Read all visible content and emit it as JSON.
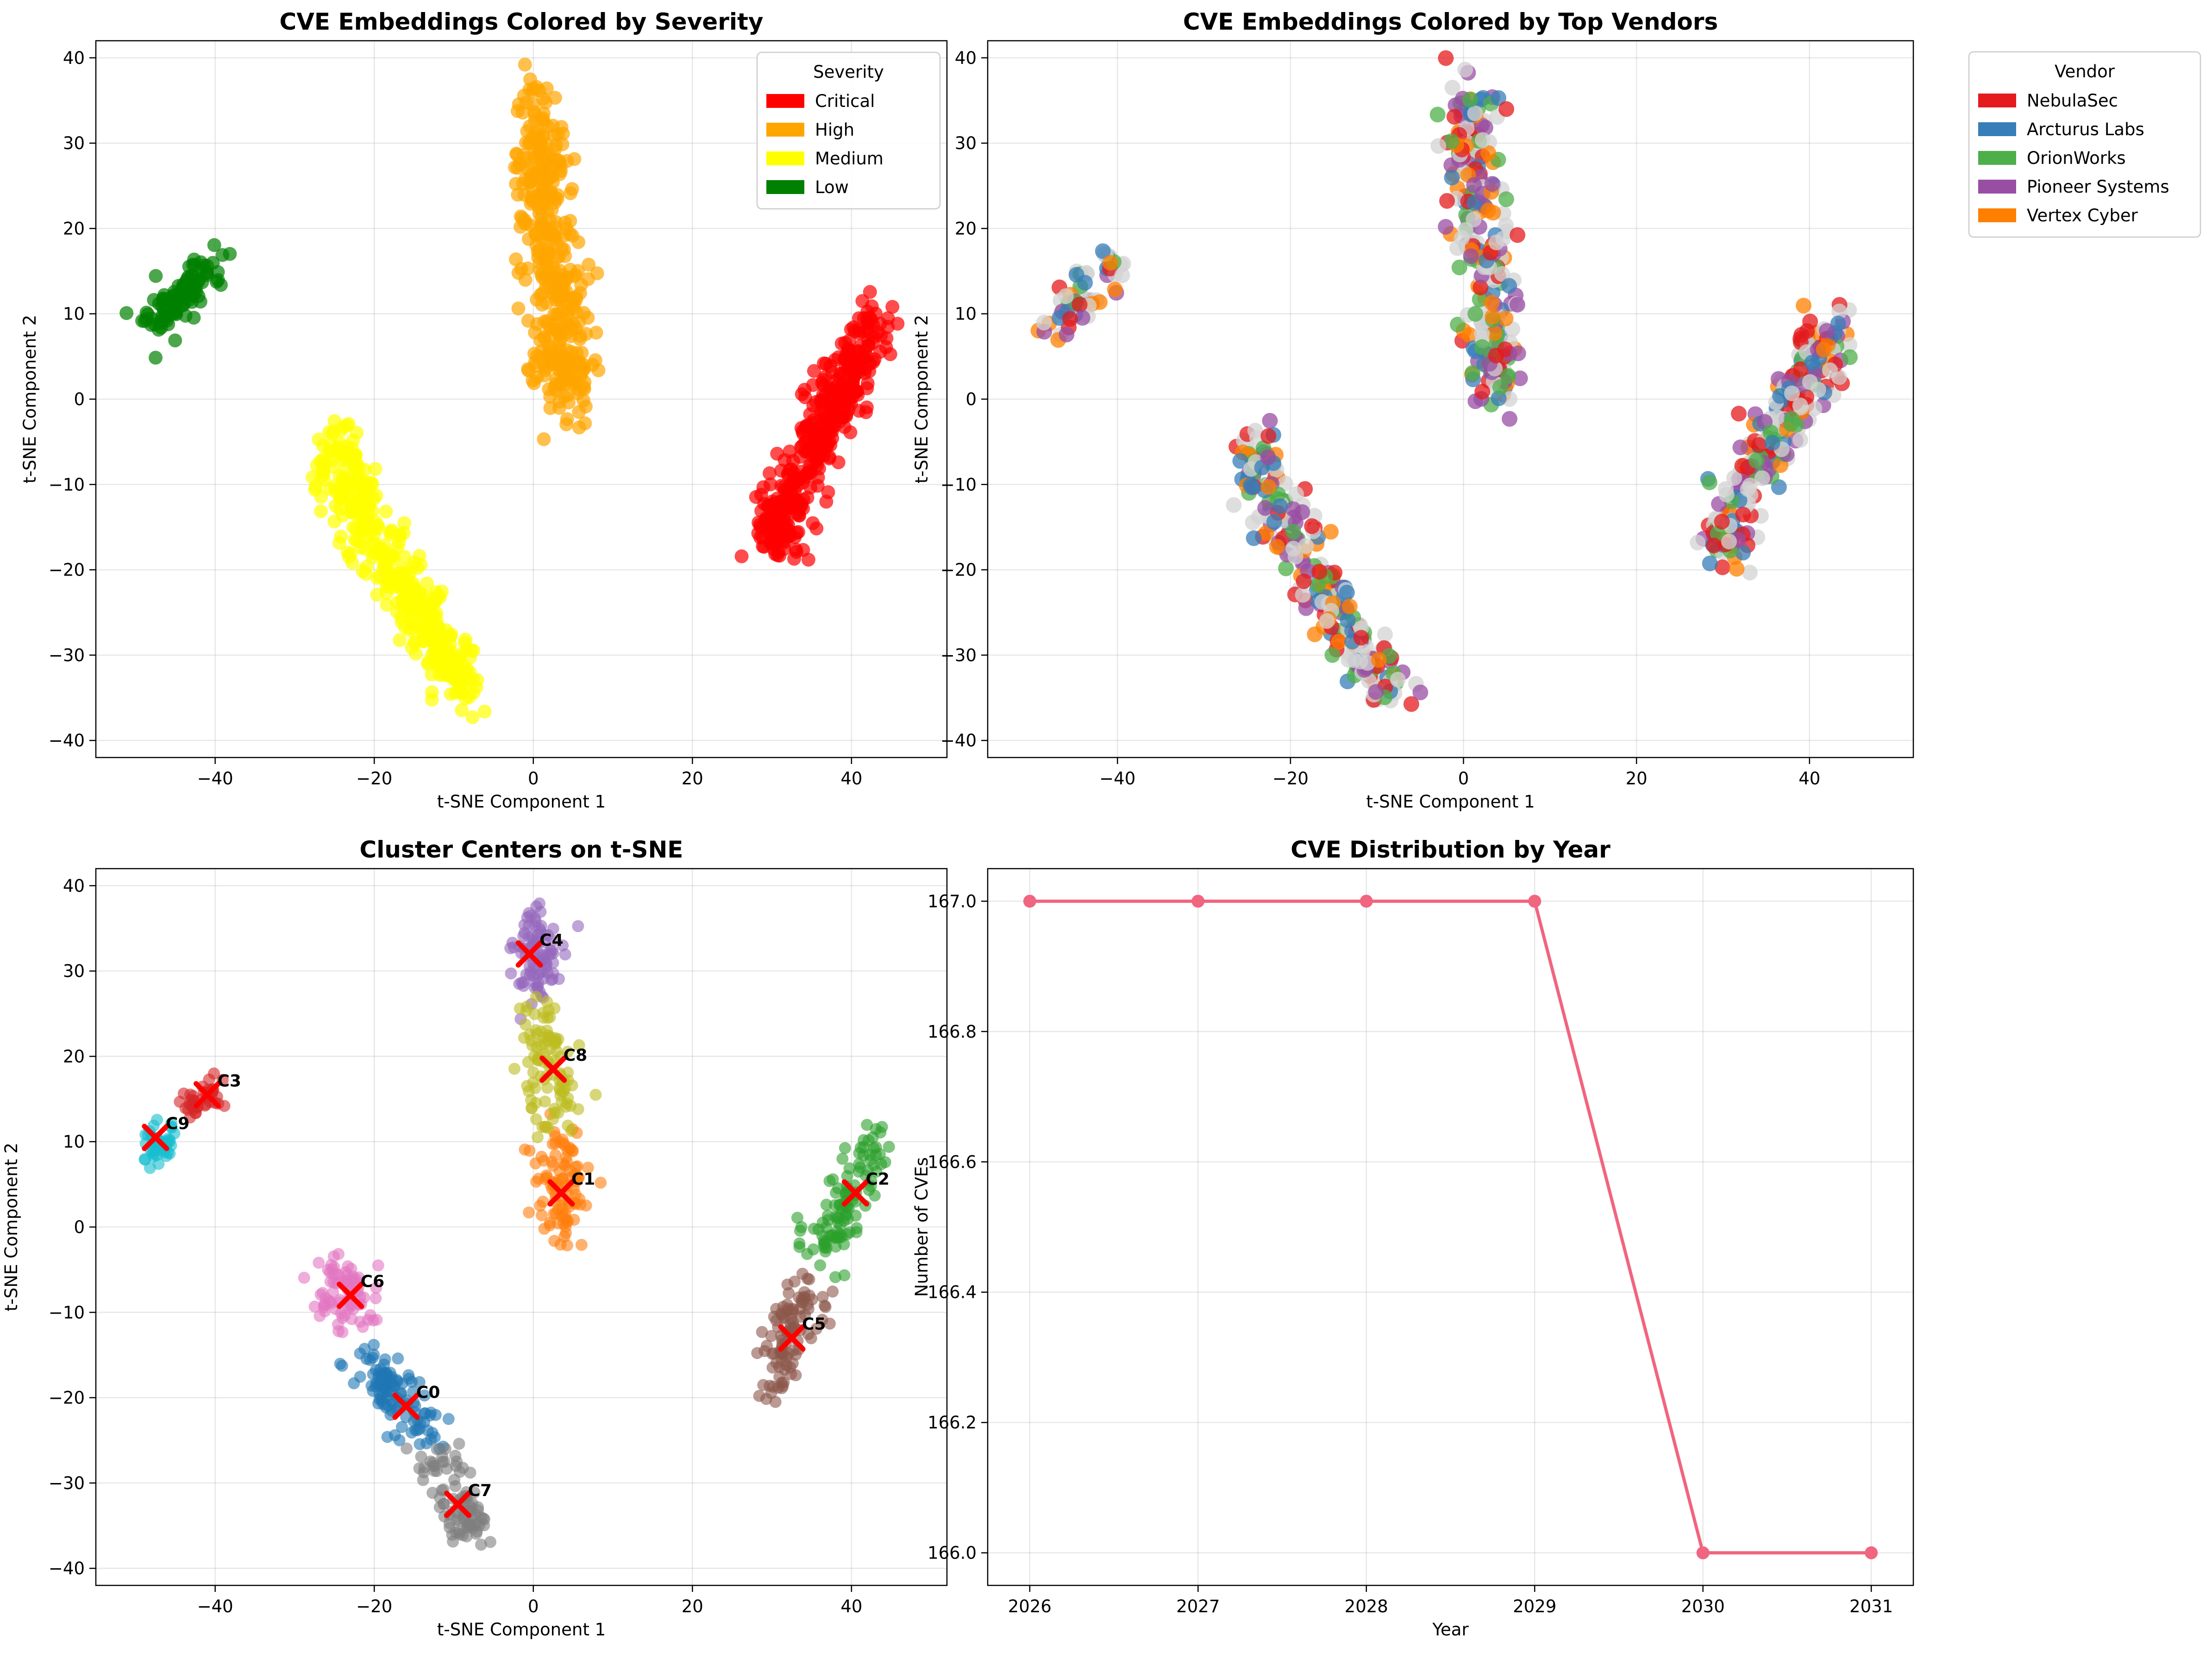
{
  "chart_data": [
    {
      "type": "scatter",
      "title": "CVE Embeddings Colored by Severity",
      "xlabel": "t-SNE Component 1",
      "ylabel": "t-SNE Component 2",
      "xlim": [
        -55,
        52
      ],
      "ylim": [
        -42,
        42
      ],
      "xticks": [
        -40,
        -20,
        0,
        20,
        40
      ],
      "yticks": [
        -40,
        -30,
        -20,
        -10,
        0,
        10,
        20,
        30,
        40
      ],
      "grid": true,
      "legend": {
        "title": "Severity",
        "placement": "upper-right",
        "entries": [
          {
            "label": "Critical",
            "color": "#ff0000"
          },
          {
            "label": "High",
            "color": "#ffa500"
          },
          {
            "label": "Medium",
            "color": "#ffff00"
          },
          {
            "label": "Low",
            "color": "#008000"
          }
        ]
      },
      "groups": [
        {
          "name": "Low",
          "color": "#008000",
          "path": [
            [
              -48,
              9
            ],
            [
              -44,
              12
            ],
            [
              -40,
              16
            ]
          ],
          "n": 100,
          "spread": 1.2
        },
        {
          "name": "High",
          "color": "#ffa500",
          "path": [
            [
              0,
              36
            ],
            [
              1,
              28
            ],
            [
              2,
              20
            ],
            [
              3,
              12
            ],
            [
              3.5,
              5
            ],
            [
              4,
              0
            ]
          ],
          "n": 400,
          "spread": 1.8
        },
        {
          "name": "Medium",
          "color": "#ffff00",
          "path": [
            [
              -25,
              -5
            ],
            [
              -22,
              -12
            ],
            [
              -18,
              -20
            ],
            [
              -13,
              -27
            ],
            [
              -8,
              -35
            ]
          ],
          "n": 400,
          "spread": 1.6
        },
        {
          "name": "Critical",
          "color": "#ff0000",
          "path": [
            [
              30,
              -18
            ],
            [
              32,
              -12
            ],
            [
              36,
              -4
            ],
            [
              39,
              2
            ],
            [
              43,
              9
            ]
          ],
          "n": 400,
          "spread": 1.6
        }
      ]
    },
    {
      "type": "scatter",
      "title": "CVE Embeddings Colored by Top Vendors",
      "xlabel": "t-SNE Component 1",
      "ylabel": "t-SNE Component 2",
      "xlim": [
        -55,
        52
      ],
      "ylim": [
        -42,
        42
      ],
      "xticks": [
        -40,
        -20,
        0,
        20,
        40
      ],
      "yticks": [
        -40,
        -30,
        -20,
        -10,
        0,
        10,
        20,
        30,
        40
      ],
      "grid": true,
      "legend": {
        "title": "Vendor",
        "placement": "outside-upper-right",
        "entries": [
          {
            "label": "NebulaSec",
            "color": "#e41a1c"
          },
          {
            "label": "Arcturus Labs",
            "color": "#377eb8"
          },
          {
            "label": "OrionWorks",
            "color": "#4daf4a"
          },
          {
            "label": "Pioneer Systems",
            "color": "#984ea3"
          },
          {
            "label": "Vertex Cyber",
            "color": "#ff7f00"
          }
        ]
      },
      "other_color": "#d3d3d3",
      "groups": [
        {
          "path": [
            [
              -48,
              9
            ],
            [
              -44,
              12
            ],
            [
              -40,
              16
            ]
          ],
          "n": 60,
          "spread": 1.2
        },
        {
          "path": [
            [
              0,
              36
            ],
            [
              1,
              28
            ],
            [
              2,
              20
            ],
            [
              3,
              12
            ],
            [
              3.5,
              5
            ],
            [
              4,
              0
            ]
          ],
          "n": 260,
          "spread": 1.8
        },
        {
          "path": [
            [
              -25,
              -5
            ],
            [
              -22,
              -12
            ],
            [
              -18,
              -20
            ],
            [
              -13,
              -27
            ],
            [
              -8,
              -35
            ]
          ],
          "n": 260,
          "spread": 1.6
        },
        {
          "path": [
            [
              30,
              -18
            ],
            [
              32,
              -12
            ],
            [
              36,
              -4
            ],
            [
              39,
              2
            ],
            [
              43,
              9
            ]
          ],
          "n": 260,
          "spread": 1.6
        }
      ]
    },
    {
      "type": "scatter",
      "title": "Cluster Centers on t-SNE",
      "xlabel": "t-SNE Component 1",
      "ylabel": "t-SNE Component 2",
      "xlim": [
        -55,
        52
      ],
      "ylim": [
        -42,
        42
      ],
      "xticks": [
        -40,
        -20,
        0,
        20,
        40
      ],
      "yticks": [
        -40,
        -30,
        -20,
        -10,
        0,
        10,
        20,
        30,
        40
      ],
      "grid": true,
      "center_marker_color": "#ff0000",
      "clusters": [
        {
          "label": "C0",
          "color": "#1f77b4",
          "center": [
            -16,
            -21
          ],
          "path": [
            [
              -21,
              -16
            ],
            [
              -17,
              -20
            ],
            [
              -13,
              -25
            ]
          ],
          "n": 110,
          "spread": 1.4
        },
        {
          "label": "C1",
          "color": "#ff7f0e",
          "center": [
            3.5,
            4
          ],
          "path": [
            [
              3,
              11
            ],
            [
              3.5,
              5
            ],
            [
              4,
              0
            ]
          ],
          "n": 100,
          "spread": 1.6
        },
        {
          "label": "C2",
          "color": "#2ca02c",
          "center": [
            40.5,
            4
          ],
          "path": [
            [
              36,
              -3
            ],
            [
              39,
              2
            ],
            [
              43,
              10
            ]
          ],
          "n": 110,
          "spread": 1.5
        },
        {
          "label": "C3",
          "color": "#d62728",
          "center": [
            -41,
            15.5
          ],
          "path": [
            [
              -43,
              14
            ],
            [
              -40,
              16
            ]
          ],
          "n": 40,
          "spread": 1.0
        },
        {
          "label": "C4",
          "color": "#9467bd",
          "center": [
            -0.5,
            32
          ],
          "path": [
            [
              0,
              36
            ],
            [
              0.5,
              28
            ]
          ],
          "n": 90,
          "spread": 1.6
        },
        {
          "label": "C5",
          "color": "#8c564b",
          "center": [
            32.5,
            -13
          ],
          "path": [
            [
              30,
              -19
            ],
            [
              32,
              -12
            ],
            [
              35,
              -7
            ]
          ],
          "n": 100,
          "spread": 1.5
        },
        {
          "label": "C6",
          "color": "#e377c2",
          "center": [
            -23,
            -8
          ],
          "path": [
            [
              -25,
              -5
            ],
            [
              -22,
              -10
            ]
          ],
          "n": 80,
          "spread": 1.5
        },
        {
          "label": "C7",
          "color": "#7f7f7f",
          "center": [
            -9.5,
            -32.5
          ],
          "path": [
            [
              -13,
              -27
            ],
            [
              -9,
              -33
            ],
            [
              -8,
              -36
            ]
          ],
          "n": 90,
          "spread": 1.4
        },
        {
          "label": "C8",
          "color": "#bcbd22",
          "center": [
            2.5,
            18.5
          ],
          "path": [
            [
              1,
              25
            ],
            [
              2,
              18
            ],
            [
              3,
              13
            ]
          ],
          "n": 100,
          "spread": 1.6
        },
        {
          "label": "C9",
          "color": "#17becf",
          "center": [
            -47.5,
            10.5
          ],
          "path": [
            [
              -48,
              9
            ],
            [
              -46,
              11
            ]
          ],
          "n": 50,
          "spread": 1.0
        }
      ]
    },
    {
      "type": "line",
      "title": "CVE Distribution by Year",
      "xlabel": "Year",
      "ylabel": "Number of CVEs",
      "categories": [
        "2026",
        "2027",
        "2028",
        "2029",
        "2030",
        "2031"
      ],
      "x": [
        2026,
        2027,
        2028,
        2029,
        2030,
        2031
      ],
      "values": [
        167.0,
        167.0,
        167.0,
        167.0,
        166.0,
        166.0
      ],
      "xlim": [
        2025.75,
        2031.25
      ],
      "ylim": [
        165.95,
        167.05
      ],
      "xticks": [
        "2026",
        "2027",
        "2028",
        "2029",
        "2030",
        "2031"
      ],
      "yticks": [
        "166.0",
        "166.2",
        "166.4",
        "166.6",
        "166.8",
        "167.0"
      ],
      "line_color": "#f0657f",
      "grid": true
    }
  ]
}
